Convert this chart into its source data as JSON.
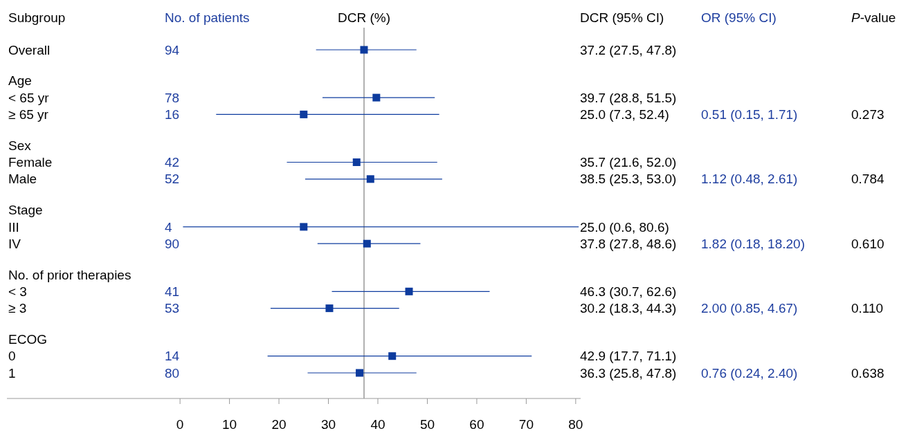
{
  "chart_data": {
    "type": "scatter",
    "orientation": "horizontal",
    "ylabel": "Subgroup",
    "xlabel": "DCR (%)",
    "categories": [
      "Overall",
      "Age",
      "< 65 yr",
      "≥ 65 yr",
      "Sex",
      "Female",
      "Male",
      "Stage",
      "III",
      "IV",
      "No. of prior therapies",
      "< 3",
      "≥ 3",
      "ECOG",
      "0",
      "1"
    ],
    "values": [
      37.2,
      null,
      39.7,
      25.0,
      null,
      35.7,
      38.5,
      null,
      25.0,
      37.8,
      null,
      46.3,
      30.2,
      null,
      42.9,
      36.3
    ],
    "errors": [
      [
        27.5,
        47.8
      ],
      null,
      [
        28.8,
        51.5
      ],
      [
        7.3,
        52.4
      ],
      null,
      [
        21.6,
        52.0
      ],
      [
        25.3,
        53.0
      ],
      null,
      [
        0.6,
        80.6
      ],
      [
        27.8,
        48.6
      ],
      null,
      [
        30.7,
        62.6
      ],
      [
        18.3,
        44.3
      ],
      null,
      [
        17.7,
        71.1
      ],
      [
        25.8,
        47.8
      ]
    ],
    "color": "#0d3b9e",
    "marker": "square",
    "xlim": [
      -35,
      81
    ],
    "xticks": [
      0,
      10,
      20,
      30,
      40,
      50,
      60,
      70,
      80
    ],
    "ref_lines": [
      {
        "axis": "x",
        "value": 37.2,
        "color": "#b0b0b0"
      }
    ],
    "annotations": [
      "No. of patients",
      "DCR (95% CI)",
      "OR (95% CI)",
      "P-value",
      "94",
      "78",
      "16",
      "42",
      "52",
      "4",
      "90",
      "41",
      "53",
      "14",
      "80",
      "37.2 (27.5, 47.8)",
      "39.7 (28.8, 51.5)",
      "25.0 (7.3, 52.4)",
      "35.7 (21.6, 52.0)",
      "38.5 (25.3, 53.0)",
      "25.0 (0.6, 80.6)",
      "37.8 (27.8, 48.6)",
      "46.3 (30.7, 62.6)",
      "30.2 (18.3, 44.3)",
      "42.9 (17.7, 71.1)",
      "36.3 (25.8, 47.8)",
      "0.51 (0.15, 1.71)",
      "0.273",
      "1.12 (0.48, 2.61)",
      "0.784",
      "1.82 (0.18, 18.20)",
      "0.610",
      "2.00 (0.85, 4.67)",
      "0.110",
      "0.76 (0.24, 2.40)",
      "0.638"
    ]
  }
}
